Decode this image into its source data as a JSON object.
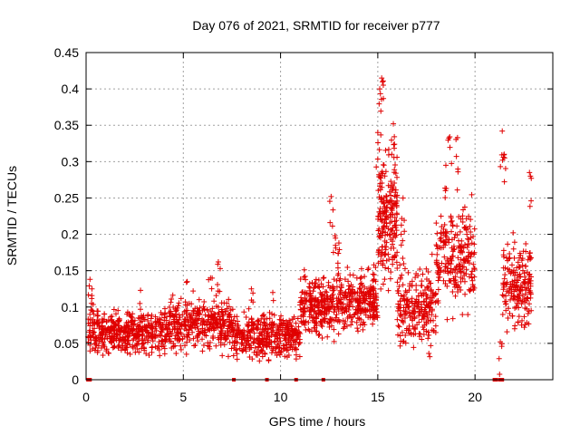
{
  "chart_data": {
    "type": "scatter",
    "title": "Day 076 of 2021, SRMTID for receiver p777",
    "xlabel": "GPS time / hours",
    "ylabel": "SRMTID / TECUs",
    "xlim": [
      0,
      24
    ],
    "ylim": [
      0,
      0.45
    ],
    "xticks": [
      0,
      5,
      10,
      15,
      20
    ],
    "xtick_labels": [
      "0",
      "5",
      "10",
      "15",
      "20"
    ],
    "yticks": [
      0,
      0.05,
      0.1,
      0.15,
      0.2,
      0.25,
      0.3,
      0.35,
      0.4,
      0.45
    ],
    "ytick_labels": [
      "0",
      "0.05",
      "0.1",
      "0.15",
      "0.2",
      "0.25",
      "0.3",
      "0.35",
      "0.4",
      "0.45"
    ],
    "grid": true,
    "marker": "plus",
    "color": "#e00000",
    "series": [
      {
        "name": "SRMTID",
        "segments": [
          {
            "x_start": 0.1,
            "x_end": 4.0,
            "base": 0.065,
            "spread": 0.035,
            "n": 420,
            "spikes": [
              [
                0.2,
                0.138
              ],
              [
                0.3,
                0.125
              ],
              [
                2.8,
                0.123
              ]
            ]
          },
          {
            "x_start": 4.0,
            "x_end": 7.5,
            "base": 0.075,
            "spread": 0.04,
            "n": 380,
            "spikes": [
              [
                6.8,
                0.162
              ],
              [
                5.2,
                0.135
              ],
              [
                6.4,
                0.14
              ]
            ]
          },
          {
            "x_start": 7.5,
            "x_end": 11.0,
            "base": 0.06,
            "spread": 0.035,
            "n": 380,
            "spikes": [
              [
                8.5,
                0.125
              ],
              [
                9.6,
                0.12
              ]
            ]
          },
          {
            "x_start": 11.0,
            "x_end": 13.0,
            "base": 0.1,
            "spread": 0.05,
            "n": 260,
            "spikes": [
              [
                12.6,
                0.252
              ],
              [
                12.8,
                0.198
              ],
              [
                13.0,
                0.188
              ]
            ]
          },
          {
            "x_start": 13.0,
            "x_end": 15.0,
            "base": 0.11,
            "spread": 0.045,
            "n": 240,
            "spikes": [
              [
                14.8,
                0.158
              ]
            ]
          },
          {
            "x_start": 15.0,
            "x_end": 16.0,
            "base": 0.22,
            "spread": 0.1,
            "n": 200,
            "spikes": [
              [
                15.2,
                0.415
              ],
              [
                15.1,
                0.4
              ],
              [
                15.8,
                0.352
              ],
              [
                15.0,
                0.34
              ]
            ]
          },
          {
            "x_start": 16.0,
            "x_end": 18.0,
            "base": 0.1,
            "spread": 0.06,
            "n": 230,
            "spikes": [
              [
                16.2,
                0.2
              ],
              [
                16.3,
                0.25
              ]
            ]
          },
          {
            "x_start": 18.0,
            "x_end": 20.0,
            "base": 0.17,
            "spread": 0.08,
            "n": 230,
            "spikes": [
              [
                18.7,
                0.334
              ],
              [
                19.1,
                0.333
              ],
              [
                18.5,
                0.295
              ]
            ]
          },
          {
            "x_start": 21.4,
            "x_end": 22.9,
            "base": 0.13,
            "spread": 0.07,
            "n": 190,
            "spikes": [
              [
                21.4,
                0.342
              ],
              [
                21.5,
                0.31
              ],
              [
                22.8,
                0.285
              ],
              [
                21.3,
                0.052
              ]
            ]
          }
        ],
        "zero_markers_x": [
          0.1,
          0.2,
          7.6,
          9.3,
          10.8,
          12.2,
          21.0,
          21.1,
          21.3,
          21.4
        ]
      }
    ]
  }
}
